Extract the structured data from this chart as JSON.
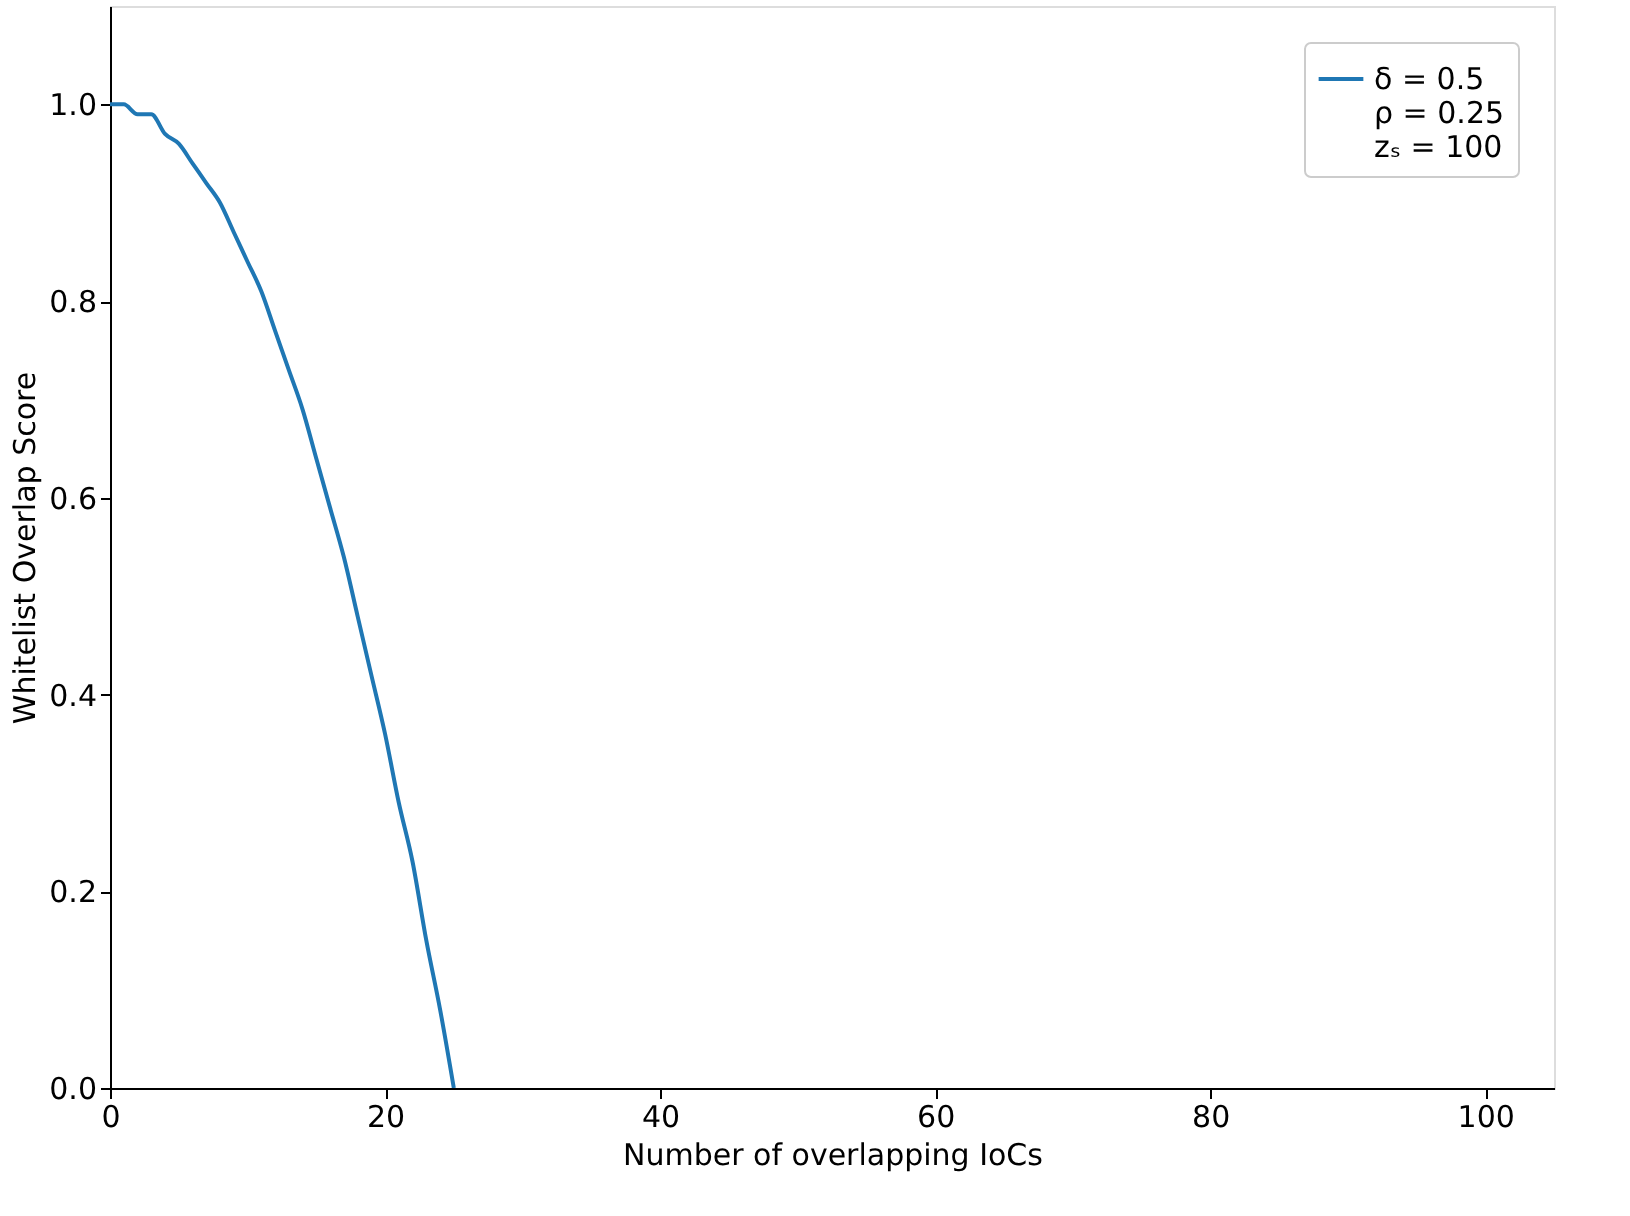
{
  "chart_data": {
    "type": "line",
    "xlabel": "Number of overlapping IoCs",
    "ylabel": "Whitelist Overlap Score",
    "x": [
      0,
      1,
      2,
      3,
      4,
      5,
      6,
      7,
      8,
      9,
      10,
      11,
      12,
      13,
      14,
      15,
      16,
      17,
      18,
      19,
      20,
      21,
      22,
      23,
      24,
      25
    ],
    "series": [
      {
        "name": "δ = 0.5\nρ = 0.25\nzₛ = 100",
        "color": "#1f77b4",
        "values": [
          1.0,
          1.0,
          0.99,
          0.99,
          0.97,
          0.96,
          0.94,
          0.92,
          0.9,
          0.87,
          0.84,
          0.81,
          0.77,
          0.73,
          0.69,
          0.64,
          0.59,
          0.54,
          0.48,
          0.42,
          0.36,
          0.29,
          0.23,
          0.15,
          0.08,
          0.0
        ]
      }
    ],
    "xlim": [
      0,
      105
    ],
    "ylim": [
      0,
      1.1
    ],
    "xticks": [
      0,
      20,
      40,
      60,
      80,
      100
    ],
    "yticks": [
      {
        "value": 0,
        "label": "0.0"
      },
      {
        "value": 0.2,
        "label": "0.2"
      },
      {
        "value": 0.4,
        "label": "0.4"
      },
      {
        "value": 0.6,
        "label": "0.6"
      },
      {
        "value": 0.8,
        "label": "0.8"
      },
      {
        "value": 1.0,
        "label": "1.0"
      }
    ],
    "legend": "top right",
    "grid": false,
    "marker": "none",
    "line_style": "solid"
  }
}
